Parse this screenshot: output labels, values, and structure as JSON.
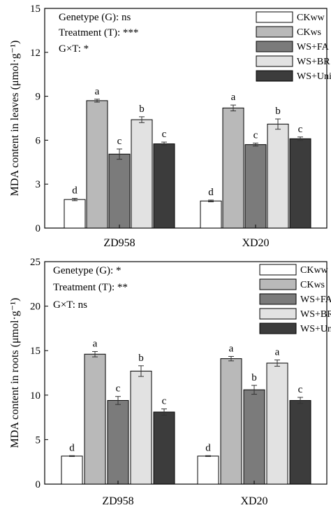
{
  "colors": {
    "CKww": "#ffffff",
    "CKws": "#b9b9b9",
    "WS+FA": "#7b7b7b",
    "WS+BR": "#e2e2e2",
    "WS+Uni": "#3c3c3c"
  },
  "chart_data": [
    {
      "type": "bar",
      "title": "",
      "ylabel": "MDA content in leaves (μmol·g⁻¹)",
      "xlabel": "",
      "ylim": [
        0,
        15
      ],
      "yticks": [
        0,
        3,
        6,
        9,
        12,
        15
      ],
      "categories": [
        "ZD958",
        "XD20"
      ],
      "annotations": [
        "Genetype (G): ns",
        "Treatment (T): ***",
        "G×T: *"
      ],
      "legend_position": "top-right",
      "series": [
        {
          "name": "CKww",
          "values": [
            1.95,
            1.85
          ],
          "errors": [
            0.08,
            0.06
          ],
          "letters": [
            "d",
            "d"
          ]
        },
        {
          "name": "CKws",
          "values": [
            8.7,
            8.2
          ],
          "errors": [
            0.1,
            0.2
          ],
          "letters": [
            "a",
            "a"
          ]
        },
        {
          "name": "WS+FA",
          "values": [
            5.05,
            5.7
          ],
          "errors": [
            0.35,
            0.1
          ],
          "letters": [
            "c",
            "c"
          ]
        },
        {
          "name": "WS+BR",
          "values": [
            7.4,
            7.1
          ],
          "errors": [
            0.2,
            0.35
          ],
          "letters": [
            "b",
            "b"
          ]
        },
        {
          "name": "WS+Uni",
          "values": [
            5.75,
            6.1
          ],
          "errors": [
            0.12,
            0.12
          ],
          "letters": [
            "c",
            "c"
          ]
        }
      ]
    },
    {
      "type": "bar",
      "title": "",
      "ylabel": "MDA content in roots (μmol·g⁻¹)",
      "xlabel": "",
      "ylim": [
        0,
        25
      ],
      "yticks": [
        0,
        5,
        10,
        15,
        20,
        25
      ],
      "categories": [
        "ZD958",
        "XD20"
      ],
      "annotations": [
        "Genetype (G): *",
        "Treatment (T): **",
        "G×T: ns"
      ],
      "legend_position": "top-right",
      "series": [
        {
          "name": "CKww",
          "values": [
            3.15,
            3.15
          ],
          "errors": [
            0.05,
            0.05
          ],
          "letters": [
            "d",
            "d"
          ]
        },
        {
          "name": "CKws",
          "values": [
            14.6,
            14.1
          ],
          "errors": [
            0.3,
            0.25
          ],
          "letters": [
            "a",
            "a"
          ]
        },
        {
          "name": "WS+FA",
          "values": [
            9.4,
            10.6
          ],
          "errors": [
            0.45,
            0.5
          ],
          "letters": [
            "c",
            "b"
          ]
        },
        {
          "name": "WS+BR",
          "values": [
            12.7,
            13.6
          ],
          "errors": [
            0.6,
            0.35
          ],
          "letters": [
            "b",
            "a"
          ]
        },
        {
          "name": "WS+Uni",
          "values": [
            8.1,
            9.4
          ],
          "errors": [
            0.35,
            0.35
          ],
          "letters": [
            "c",
            "c"
          ]
        }
      ]
    }
  ]
}
